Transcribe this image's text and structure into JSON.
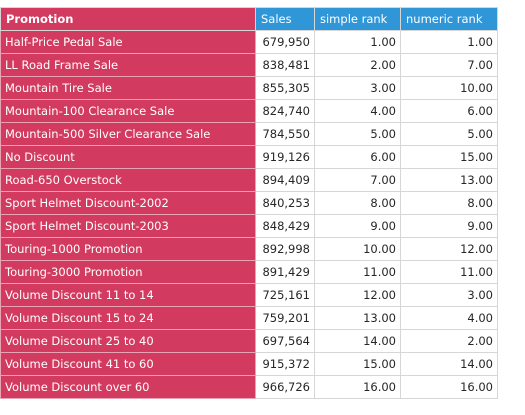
{
  "table": {
    "headers": [
      "Promotion",
      "Sales",
      "simple rank",
      "numeric rank"
    ],
    "rows": [
      [
        "Half-Price Pedal Sale",
        "679,950",
        "1.00",
        "1.00"
      ],
      [
        "LL Road Frame Sale",
        "838,481",
        "2.00",
        "7.00"
      ],
      [
        "Mountain Tire Sale",
        "855,305",
        "3.00",
        "10.00"
      ],
      [
        "Mountain-100 Clearance Sale",
        "824,740",
        "4.00",
        "6.00"
      ],
      [
        "Mountain-500 Silver Clearance Sale",
        "784,550",
        "5.00",
        "5.00"
      ],
      [
        "No Discount",
        "919,126",
        "6.00",
        "15.00"
      ],
      [
        "Road-650 Overstock",
        "894,409",
        "7.00",
        "13.00"
      ],
      [
        "Sport Helmet Discount-2002",
        "840,253",
        "8.00",
        "8.00"
      ],
      [
        "Sport Helmet Discount-2003",
        "848,429",
        "9.00",
        "9.00"
      ],
      [
        "Touring-1000 Promotion",
        "892,998",
        "10.00",
        "12.00"
      ],
      [
        "Touring-3000 Promotion",
        "891,429",
        "11.00",
        "11.00"
      ],
      [
        "Volume Discount 11 to 14",
        "725,161",
        "12.00",
        "3.00"
      ],
      [
        "Volume Discount 15 to 24",
        "759,201",
        "13.00",
        "4.00"
      ],
      [
        "Volume Discount 25 to 40",
        "697,564",
        "14.00",
        "2.00"
      ],
      [
        "Volume Discount 41 to 60",
        "915,372",
        "15.00",
        "14.00"
      ],
      [
        "Volume Discount over 60",
        "966,726",
        "16.00",
        "16.00"
      ]
    ]
  },
  "colors": {
    "header_accent": "#2f96d8",
    "row_header_accent": "#d23a5f"
  }
}
